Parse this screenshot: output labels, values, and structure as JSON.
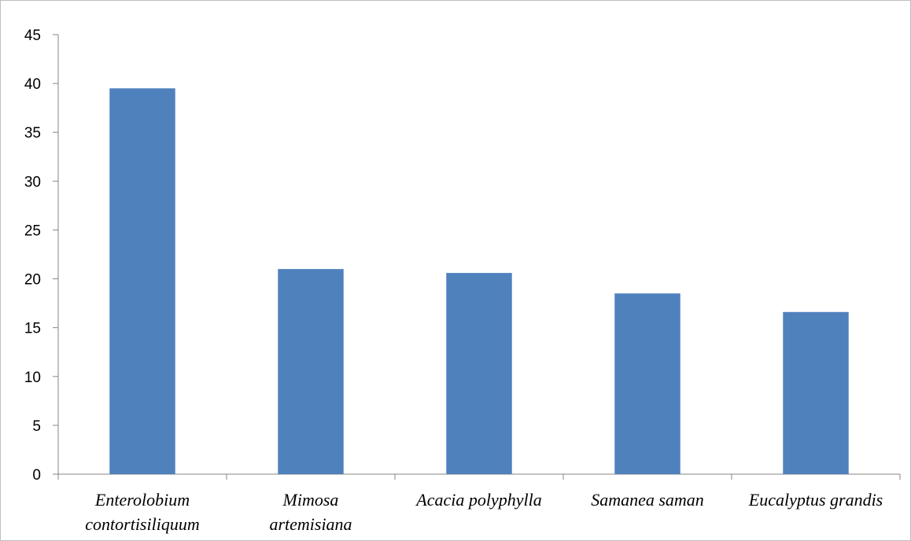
{
  "chart_data": {
    "type": "bar",
    "title": "",
    "xlabel": "",
    "ylabel": "",
    "categories": [
      "Enterolobium contortisiliquum",
      "Mimosa artemisiana",
      "Acacia polyphylla",
      "Samanea saman",
      "Eucalyptus grandis"
    ],
    "category_lines": [
      [
        "Enterolobium",
        "contortisiliquum"
      ],
      [
        "Mimosa",
        "artemisiana"
      ],
      [
        "Acacia polyphylla"
      ],
      [
        "Samanea saman"
      ],
      [
        "Eucalyptus grandis"
      ]
    ],
    "values": [
      39.5,
      21.0,
      20.6,
      18.5,
      16.6
    ],
    "ylim": [
      0,
      45
    ],
    "yticks": [
      0,
      5,
      10,
      15,
      20,
      25,
      30,
      35,
      40,
      45
    ],
    "grid": false,
    "legend": "none",
    "bar_color": "#4F81BD"
  }
}
